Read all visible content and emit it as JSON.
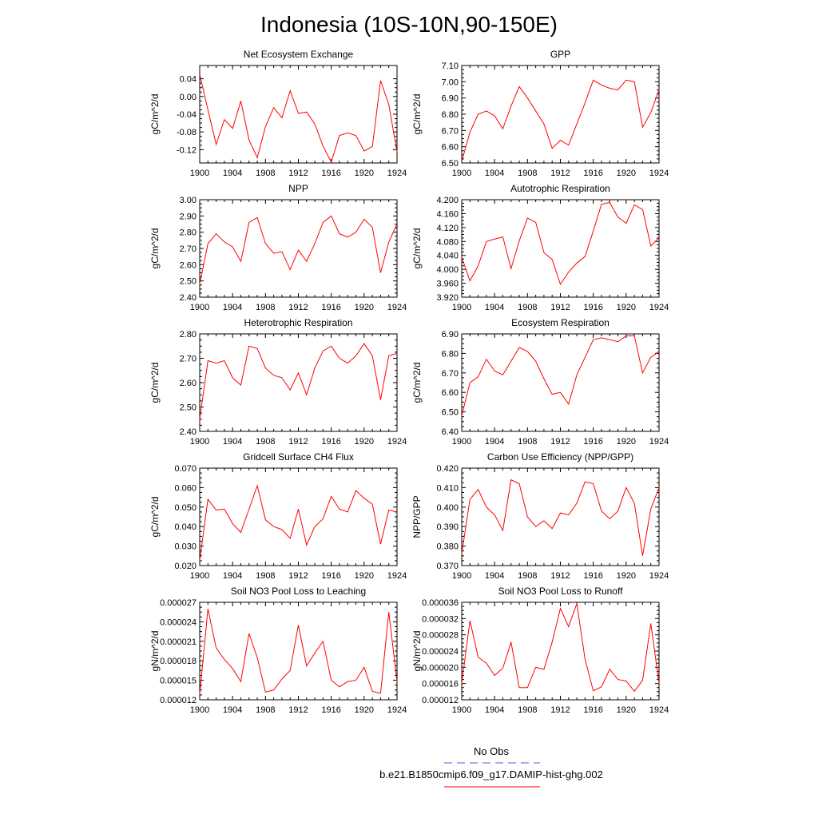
{
  "figure": {
    "title": "Indonesia (10S-10N,90-150E)"
  },
  "legend": {
    "items": [
      {
        "label": "No Obs",
        "color": "#5555dd",
        "style": "dashed"
      },
      {
        "label": "b.e21.B1850cmip6.f09_g17.DAMIP-hist-ghg.002",
        "color": "#ff0000",
        "style": "solid"
      }
    ]
  },
  "colors": {
    "series": "#ff0000",
    "axis": "#000000",
    "background": "#ffffff"
  },
  "chart_data": [
    {
      "type": "line",
      "title": "Net Ecosystem Exchange",
      "ylabel": "gC/m^2/d",
      "xlim": [
        1900,
        1924
      ],
      "ylim": [
        -0.15,
        0.07
      ],
      "xticks": [
        1900,
        1904,
        1908,
        1912,
        1916,
        1920,
        1924
      ],
      "yticks": [
        -0.12,
        -0.08,
        -0.04,
        0.0,
        0.04
      ],
      "ytick_labels": [
        "-0.12",
        "-0.08",
        "-0.04",
        "0.00",
        "0.04"
      ],
      "x": [
        1900,
        1901,
        1902,
        1903,
        1904,
        1905,
        1906,
        1907,
        1908,
        1909,
        1910,
        1911,
        1912,
        1913,
        1914,
        1915,
        1916,
        1917,
        1918,
        1919,
        1920,
        1921,
        1922,
        1923,
        1924
      ],
      "series": [
        {
          "values": [
            0.05,
            -0.03,
            -0.108,
            -0.052,
            -0.072,
            -0.01,
            -0.098,
            -0.138,
            -0.068,
            -0.025,
            -0.048,
            0.013,
            -0.038,
            -0.035,
            -0.062,
            -0.112,
            -0.148,
            -0.088,
            -0.082,
            -0.088,
            -0.123,
            -0.113,
            0.036,
            -0.018,
            -0.125
          ]
        }
      ]
    },
    {
      "type": "line",
      "title": "GPP",
      "ylabel": "gC/m^2/d",
      "xlim": [
        1900,
        1924
      ],
      "ylim": [
        6.5,
        7.1
      ],
      "xticks": [
        1900,
        1904,
        1908,
        1912,
        1916,
        1920,
        1924
      ],
      "yticks": [
        6.5,
        6.6,
        6.7,
        6.8,
        6.9,
        7.0,
        7.1
      ],
      "ytick_labels": [
        "6.50",
        "6.60",
        "6.70",
        "6.80",
        "6.90",
        "7.00",
        "7.10"
      ],
      "x": [
        1900,
        1901,
        1902,
        1903,
        1904,
        1905,
        1906,
        1907,
        1908,
        1909,
        1910,
        1911,
        1912,
        1913,
        1914,
        1915,
        1916,
        1917,
        1918,
        1919,
        1920,
        1921,
        1922,
        1923,
        1924
      ],
      "series": [
        {
          "values": [
            6.51,
            6.69,
            6.8,
            6.82,
            6.79,
            6.71,
            6.85,
            6.97,
            6.9,
            6.82,
            6.74,
            6.59,
            6.64,
            6.61,
            6.74,
            6.87,
            7.01,
            6.98,
            6.96,
            6.95,
            7.01,
            7.0,
            6.72,
            6.81,
            6.95
          ]
        }
      ]
    },
    {
      "type": "line",
      "title": "NPP",
      "ylabel": "gC/m^2/d",
      "xlim": [
        1900,
        1924
      ],
      "ylim": [
        2.4,
        3.0
      ],
      "xticks": [
        1900,
        1904,
        1908,
        1912,
        1916,
        1920,
        1924
      ],
      "yticks": [
        2.4,
        2.5,
        2.6,
        2.7,
        2.8,
        2.9,
        3.0
      ],
      "ytick_labels": [
        "2.40",
        "2.50",
        "2.60",
        "2.70",
        "2.80",
        "2.90",
        "3.00"
      ],
      "x": [
        1900,
        1901,
        1902,
        1903,
        1904,
        1905,
        1906,
        1907,
        1908,
        1909,
        1910,
        1911,
        1912,
        1913,
        1914,
        1915,
        1916,
        1917,
        1918,
        1919,
        1920,
        1921,
        1922,
        1923,
        1924
      ],
      "series": [
        {
          "values": [
            2.48,
            2.73,
            2.79,
            2.74,
            2.71,
            2.62,
            2.86,
            2.89,
            2.73,
            2.67,
            2.68,
            2.57,
            2.69,
            2.62,
            2.73,
            2.86,
            2.9,
            2.79,
            2.77,
            2.8,
            2.88,
            2.83,
            2.55,
            2.74,
            2.85
          ]
        }
      ]
    },
    {
      "type": "line",
      "title": "Autotrophic Respiration",
      "ylabel": "gC/m^2/d",
      "xlim": [
        1900,
        1924
      ],
      "ylim": [
        3.92,
        4.2
      ],
      "xticks": [
        1900,
        1904,
        1908,
        1912,
        1916,
        1920,
        1924
      ],
      "yticks": [
        3.92,
        3.96,
        4.0,
        4.04,
        4.08,
        4.12,
        4.16,
        4.2
      ],
      "ytick_labels": [
        "3.920",
        "3.960",
        "4.000",
        "4.040",
        "4.080",
        "4.120",
        "4.160",
        "4.200"
      ],
      "x": [
        1900,
        1901,
        1902,
        1903,
        1904,
        1905,
        1906,
        1907,
        1908,
        1909,
        1910,
        1911,
        1912,
        1913,
        1914,
        1915,
        1916,
        1917,
        1918,
        1919,
        1920,
        1921,
        1922,
        1923,
        1924
      ],
      "series": [
        {
          "values": [
            4.035,
            3.967,
            4.01,
            4.08,
            4.087,
            4.093,
            4.002,
            4.082,
            4.147,
            4.135,
            4.048,
            4.028,
            3.957,
            3.992,
            4.018,
            4.037,
            4.11,
            4.187,
            4.192,
            4.15,
            4.132,
            4.185,
            4.172,
            4.067,
            4.091
          ]
        }
      ]
    },
    {
      "type": "line",
      "title": "Heterotrophic Respiration",
      "ylabel": "gC/m^2/d",
      "xlim": [
        1900,
        1924
      ],
      "ylim": [
        2.4,
        2.8
      ],
      "xticks": [
        1900,
        1904,
        1908,
        1912,
        1916,
        1920,
        1924
      ],
      "yticks": [
        2.4,
        2.5,
        2.6,
        2.7,
        2.8
      ],
      "ytick_labels": [
        "2.40",
        "2.50",
        "2.60",
        "2.70",
        "2.80"
      ],
      "x": [
        1900,
        1901,
        1902,
        1903,
        1904,
        1905,
        1906,
        1907,
        1908,
        1909,
        1910,
        1911,
        1912,
        1913,
        1914,
        1915,
        1916,
        1917,
        1918,
        1919,
        1920,
        1921,
        1922,
        1923,
        1924
      ],
      "series": [
        {
          "values": [
            2.45,
            2.69,
            2.68,
            2.69,
            2.62,
            2.59,
            2.75,
            2.74,
            2.66,
            2.63,
            2.62,
            2.57,
            2.64,
            2.55,
            2.66,
            2.73,
            2.75,
            2.7,
            2.68,
            2.71,
            2.76,
            2.71,
            2.53,
            2.71,
            2.72
          ]
        }
      ]
    },
    {
      "type": "line",
      "title": "Ecosystem Respiration",
      "ylabel": "gC/m^2/d",
      "xlim": [
        1900,
        1924
      ],
      "ylim": [
        6.4,
        6.9
      ],
      "xticks": [
        1900,
        1904,
        1908,
        1912,
        1916,
        1920,
        1924
      ],
      "yticks": [
        6.4,
        6.5,
        6.6,
        6.7,
        6.8,
        6.9
      ],
      "ytick_labels": [
        "6.40",
        "6.50",
        "6.60",
        "6.70",
        "6.80",
        "6.90"
      ],
      "x": [
        1900,
        1901,
        1902,
        1903,
        1904,
        1905,
        1906,
        1907,
        1908,
        1909,
        1910,
        1911,
        1912,
        1913,
        1914,
        1915,
        1916,
        1917,
        1918,
        1919,
        1920,
        1921,
        1922,
        1923,
        1924
      ],
      "series": [
        {
          "values": [
            6.48,
            6.65,
            6.68,
            6.77,
            6.71,
            6.69,
            6.76,
            6.83,
            6.81,
            6.76,
            6.67,
            6.59,
            6.6,
            6.54,
            6.69,
            6.78,
            6.87,
            6.88,
            6.87,
            6.86,
            6.89,
            6.89,
            6.7,
            6.78,
            6.81
          ]
        }
      ]
    },
    {
      "type": "line",
      "title": "Gridcell Surface CH4 Flux",
      "ylabel": "gC/m^2/d",
      "xlim": [
        1900,
        1924
      ],
      "ylim": [
        0.02,
        0.07
      ],
      "xticks": [
        1900,
        1904,
        1908,
        1912,
        1916,
        1920,
        1924
      ],
      "yticks": [
        0.02,
        0.03,
        0.04,
        0.05,
        0.06,
        0.07
      ],
      "ytick_labels": [
        "0.020",
        "0.030",
        "0.040",
        "0.050",
        "0.060",
        "0.070"
      ],
      "x": [
        1900,
        1901,
        1902,
        1903,
        1904,
        1905,
        1906,
        1907,
        1908,
        1909,
        1910,
        1911,
        1912,
        1913,
        1914,
        1915,
        1916,
        1917,
        1918,
        1919,
        1920,
        1921,
        1922,
        1923,
        1924
      ],
      "series": [
        {
          "values": [
            0.0225,
            0.054,
            0.0485,
            0.049,
            0.0415,
            0.037,
            0.049,
            0.061,
            0.0435,
            0.04,
            0.0385,
            0.034,
            0.049,
            0.0305,
            0.04,
            0.044,
            0.0555,
            0.049,
            0.0475,
            0.0585,
            0.0545,
            0.0515,
            0.031,
            0.0485,
            0.0475
          ]
        }
      ]
    },
    {
      "type": "line",
      "title": "Carbon Use Efficiency (NPP/GPP)",
      "ylabel": "NPP/GPP",
      "xlim": [
        1900,
        1924
      ],
      "ylim": [
        0.37,
        0.42
      ],
      "xticks": [
        1900,
        1904,
        1908,
        1912,
        1916,
        1920,
        1924
      ],
      "yticks": [
        0.37,
        0.38,
        0.39,
        0.4,
        0.41,
        0.42
      ],
      "ytick_labels": [
        "0.370",
        "0.380",
        "0.390",
        "0.400",
        "0.410",
        "0.420"
      ],
      "x": [
        1900,
        1901,
        1902,
        1903,
        1904,
        1905,
        1906,
        1907,
        1908,
        1909,
        1910,
        1911,
        1912,
        1913,
        1914,
        1915,
        1916,
        1917,
        1918,
        1919,
        1920,
        1921,
        1922,
        1923,
        1924
      ],
      "series": [
        {
          "values": [
            0.376,
            0.404,
            0.409,
            0.4,
            0.396,
            0.388,
            0.414,
            0.412,
            0.395,
            0.39,
            0.393,
            0.389,
            0.397,
            0.396,
            0.402,
            0.413,
            0.412,
            0.398,
            0.394,
            0.398,
            0.41,
            0.402,
            0.375,
            0.399,
            0.41
          ]
        }
      ]
    },
    {
      "type": "line",
      "title": "Soil NO3 Pool Loss to Leaching",
      "ylabel": "gN/m^2/d",
      "xlim": [
        1900,
        1924
      ],
      "ylim": [
        1.2e-05,
        2.7e-05
      ],
      "xticks": [
        1900,
        1904,
        1908,
        1912,
        1916,
        1920,
        1924
      ],
      "yticks": [
        1.2e-05,
        1.5e-05,
        1.8e-05,
        2.1e-05,
        2.4e-05,
        2.7e-05
      ],
      "ytick_labels": [
        "0.000012",
        "0.000015",
        "0.000018",
        "0.000021",
        "0.000024",
        "0.000027"
      ],
      "x": [
        1900,
        1901,
        1902,
        1903,
        1904,
        1905,
        1906,
        1907,
        1908,
        1909,
        1910,
        1911,
        1912,
        1913,
        1914,
        1915,
        1916,
        1917,
        1918,
        1919,
        1920,
        1921,
        1922,
        1923,
        1924
      ],
      "series": [
        {
          "values": [
            1.28e-05,
            2.6e-05,
            2e-05,
            1.82e-05,
            1.68e-05,
            1.48e-05,
            2.22e-05,
            1.85e-05,
            1.32e-05,
            1.35e-05,
            1.52e-05,
            1.65e-05,
            2.35e-05,
            1.72e-05,
            1.92e-05,
            2.1e-05,
            1.5e-05,
            1.4e-05,
            1.48e-05,
            1.5e-05,
            1.7e-05,
            1.33e-05,
            1.3e-05,
            2.55e-05,
            1.48e-05
          ]
        }
      ]
    },
    {
      "type": "line",
      "title": "Soil NO3 Pool Loss to Runoff",
      "ylabel": "gN/m^2/d",
      "xlim": [
        1900,
        1924
      ],
      "ylim": [
        1.2e-05,
        3.6e-05
      ],
      "xticks": [
        1900,
        1904,
        1908,
        1912,
        1916,
        1920,
        1924
      ],
      "yticks": [
        1.2e-05,
        1.6e-05,
        2e-05,
        2.4e-05,
        2.8e-05,
        3.2e-05,
        3.6e-05
      ],
      "ytick_labels": [
        "0.000012",
        "0.000016",
        "0.000020",
        "0.000024",
        "0.000028",
        "0.000032",
        "0.000036"
      ],
      "x": [
        1900,
        1901,
        1902,
        1903,
        1904,
        1905,
        1906,
        1907,
        1908,
        1909,
        1910,
        1911,
        1912,
        1913,
        1914,
        1915,
        1916,
        1917,
        1918,
        1919,
        1920,
        1921,
        1922,
        1923,
        1924
      ],
      "series": [
        {
          "values": [
            1.6e-05,
            3.15e-05,
            2.25e-05,
            2.1e-05,
            1.8e-05,
            1.98e-05,
            2.62e-05,
            1.5e-05,
            1.5e-05,
            2e-05,
            1.95e-05,
            2.62e-05,
            3.45e-05,
            3e-05,
            3.57e-05,
            2.2e-05,
            1.42e-05,
            1.52e-05,
            1.95e-05,
            1.7e-05,
            1.66e-05,
            1.41e-05,
            1.68e-05,
            3.08e-05,
            1.6e-05
          ]
        }
      ]
    }
  ]
}
